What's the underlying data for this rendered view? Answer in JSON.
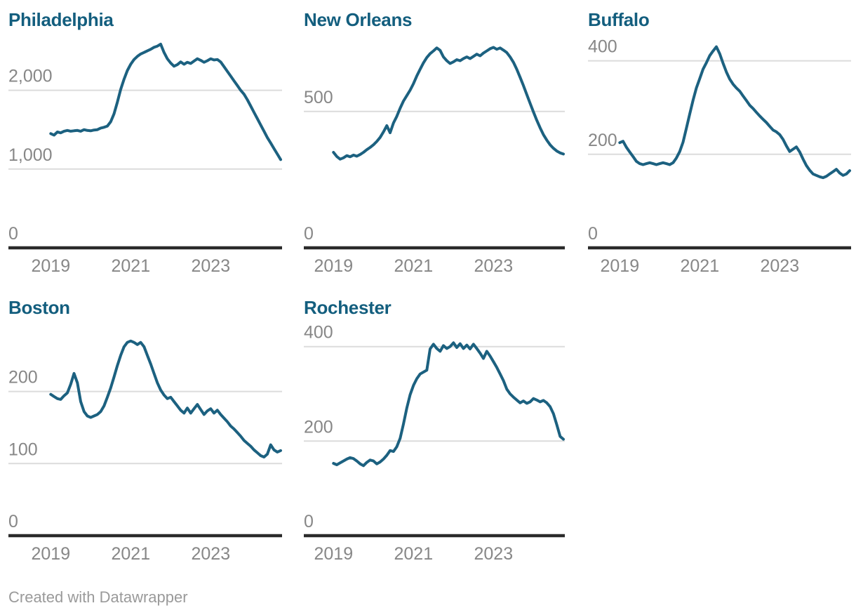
{
  "footer": {
    "credit": "Created with Datawrapper"
  },
  "style": {
    "line_color": "#1c6180",
    "title_color": "#135e7e",
    "grid_color": "#dcdcdc",
    "baseline_color": "#2b2b2b",
    "tick_label_color": "#878787",
    "footer_color": "#9a9a9a",
    "background": "#ffffff"
  },
  "chart_data": [
    {
      "type": "line",
      "title": "Philadelphia",
      "frequency": "monthly",
      "x_start": "2019-01",
      "x_end": "2024-10",
      "ylim": [
        0,
        2700
      ],
      "grid": true,
      "y_ticks": [
        {
          "value": 0,
          "label": "0"
        },
        {
          "value": 1000,
          "label": "1,000"
        },
        {
          "value": 2000,
          "label": "2,000"
        }
      ],
      "x_ticks": [
        {
          "year": 2019,
          "label": "2019"
        },
        {
          "year": 2021,
          "label": "2021"
        },
        {
          "year": 2023,
          "label": "2023"
        }
      ],
      "values": [
        1450,
        1430,
        1470,
        1460,
        1480,
        1490,
        1480,
        1485,
        1490,
        1480,
        1500,
        1490,
        1485,
        1495,
        1500,
        1520,
        1530,
        1545,
        1600,
        1700,
        1850,
        2010,
        2140,
        2250,
        2330,
        2390,
        2430,
        2460,
        2480,
        2500,
        2520,
        2545,
        2560,
        2585,
        2480,
        2400,
        2345,
        2305,
        2325,
        2360,
        2330,
        2355,
        2340,
        2370,
        2400,
        2380,
        2355,
        2375,
        2400,
        2385,
        2390,
        2360,
        2300,
        2240,
        2180,
        2120,
        2060,
        2000,
        1950,
        1880,
        1800,
        1720,
        1640,
        1560,
        1480,
        1400,
        1330,
        1260,
        1190,
        1120
      ]
    },
    {
      "type": "line",
      "title": "New Orleans",
      "frequency": "monthly",
      "x_start": "2019-01",
      "x_end": "2024-10",
      "ylim": [
        0,
        780
      ],
      "grid": true,
      "y_ticks": [
        {
          "value": 0,
          "label": "0"
        },
        {
          "value": 500,
          "label": "500"
        }
      ],
      "x_ticks": [
        {
          "year": 2019,
          "label": "2019"
        },
        {
          "year": 2021,
          "label": "2021"
        },
        {
          "year": 2023,
          "label": "2023"
        }
      ],
      "values": [
        350,
        335,
        325,
        330,
        338,
        334,
        340,
        336,
        342,
        350,
        360,
        368,
        378,
        390,
        405,
        425,
        448,
        422,
        458,
        482,
        512,
        538,
        558,
        578,
        602,
        630,
        655,
        678,
        698,
        712,
        722,
        733,
        724,
        700,
        686,
        676,
        682,
        690,
        686,
        694,
        700,
        694,
        702,
        710,
        704,
        714,
        722,
        730,
        735,
        728,
        733,
        725,
        716,
        700,
        680,
        655,
        625,
        595,
        562,
        530,
        498,
        468,
        440,
        415,
        395,
        378,
        365,
        355,
        348,
        344
      ]
    },
    {
      "type": "line",
      "title": "Buffalo",
      "frequency": "monthly",
      "x_start": "2019-01",
      "x_end": "2024-10",
      "ylim": [
        0,
        455
      ],
      "grid": true,
      "y_ticks": [
        {
          "value": 0,
          "label": "0"
        },
        {
          "value": 200,
          "label": "200"
        },
        {
          "value": 400,
          "label": "400"
        }
      ],
      "x_ticks": [
        {
          "year": 2019,
          "label": "2019"
        },
        {
          "year": 2021,
          "label": "2021"
        },
        {
          "year": 2023,
          "label": "2023"
        }
      ],
      "values": [
        225,
        228,
        215,
        205,
        195,
        185,
        180,
        178,
        180,
        182,
        180,
        178,
        180,
        182,
        180,
        178,
        182,
        192,
        206,
        226,
        256,
        286,
        316,
        342,
        362,
        382,
        396,
        411,
        421,
        430,
        415,
        395,
        376,
        361,
        350,
        342,
        335,
        325,
        315,
        305,
        298,
        290,
        282,
        275,
        268,
        260,
        252,
        248,
        242,
        232,
        218,
        206,
        211,
        216,
        205,
        190,
        176,
        166,
        158,
        155,
        152,
        150,
        153,
        158,
        163,
        168,
        160,
        155,
        158,
        165
      ]
    },
    {
      "type": "line",
      "title": "Boston",
      "frequency": "monthly",
      "x_start": "2019-01",
      "x_end": "2024-10",
      "ylim": [
        0,
        295
      ],
      "grid": true,
      "y_ticks": [
        {
          "value": 0,
          "label": "0"
        },
        {
          "value": 100,
          "label": "100"
        },
        {
          "value": 200,
          "label": "200"
        }
      ],
      "x_ticks": [
        {
          "year": 2019,
          "label": "2019"
        },
        {
          "year": 2021,
          "label": "2021"
        },
        {
          "year": 2023,
          "label": "2023"
        }
      ],
      "values": [
        196,
        193,
        190,
        189,
        194,
        198,
        210,
        225,
        212,
        186,
        172,
        166,
        164,
        166,
        168,
        172,
        180,
        192,
        205,
        220,
        236,
        250,
        262,
        268,
        270,
        268,
        265,
        268,
        262,
        250,
        238,
        225,
        212,
        202,
        195,
        190,
        192,
        186,
        180,
        174,
        170,
        177,
        170,
        176,
        182,
        175,
        168,
        173,
        176,
        170,
        174,
        168,
        163,
        158,
        152,
        148,
        143,
        138,
        132,
        128,
        124,
        119,
        115,
        111,
        109,
        113,
        126,
        119,
        116,
        118
      ]
    },
    {
      "type": "line",
      "title": "Rochester",
      "frequency": "monthly",
      "x_start": "2019-01",
      "x_end": "2024-10",
      "ylim": [
        0,
        450
      ],
      "grid": true,
      "y_ticks": [
        {
          "value": 0,
          "label": "0"
        },
        {
          "value": 200,
          "label": "200"
        },
        {
          "value": 400,
          "label": "400"
        }
      ],
      "x_ticks": [
        {
          "year": 2019,
          "label": "2019"
        },
        {
          "year": 2021,
          "label": "2021"
        },
        {
          "year": 2023,
          "label": "2023"
        }
      ],
      "values": [
        153,
        150,
        154,
        158,
        162,
        165,
        163,
        158,
        152,
        148,
        155,
        160,
        158,
        152,
        156,
        162,
        170,
        180,
        178,
        188,
        206,
        236,
        270,
        298,
        318,
        332,
        342,
        346,
        350,
        395,
        405,
        396,
        390,
        402,
        396,
        400,
        408,
        398,
        406,
        396,
        403,
        395,
        405,
        396,
        386,
        375,
        390,
        380,
        368,
        356,
        342,
        328,
        310,
        300,
        293,
        287,
        281,
        285,
        280,
        283,
        290,
        287,
        283,
        286,
        281,
        273,
        258,
        235,
        210,
        204
      ]
    }
  ]
}
